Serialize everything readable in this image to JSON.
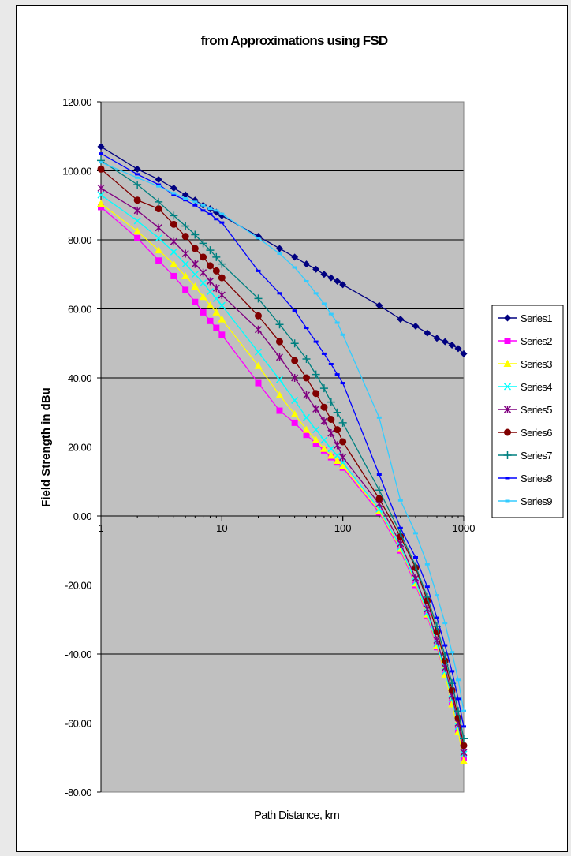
{
  "chart_data": {
    "type": "line",
    "title": "from Approximations using FSD",
    "xlabel": "Path Distance, km",
    "ylabel": "Field Strength in dBu",
    "xscale": "log",
    "xlim": [
      1,
      1000
    ],
    "ylim": [
      -80,
      120
    ],
    "y_ticks": [
      {
        "value": 120,
        "label": "120.00"
      },
      {
        "value": 100,
        "label": "100.00"
      },
      {
        "value": 80,
        "label": "80.00"
      },
      {
        "value": 60,
        "label": "60.00"
      },
      {
        "value": 40,
        "label": "40.00"
      },
      {
        "value": 20,
        "label": "20.00"
      },
      {
        "value": 0,
        "label": "0.00"
      },
      {
        "value": -20,
        "label": "-20.00"
      },
      {
        "value": -40,
        "label": "-40.00"
      },
      {
        "value": -60,
        "label": "-60.00"
      },
      {
        "value": -80,
        "label": "-80.00"
      }
    ],
    "x_ticks": [
      {
        "value": 1,
        "label": "1"
      },
      {
        "value": 10,
        "label": "10"
      },
      {
        "value": 100,
        "label": "100"
      },
      {
        "value": 1000,
        "label": "1000"
      }
    ],
    "grid": "horizontal major gridlines",
    "plot_background": "#c0c0c0",
    "legend_position": "right",
    "x": [
      1,
      2,
      3,
      4,
      5,
      6,
      7,
      8,
      9,
      10,
      20,
      30,
      40,
      50,
      60,
      70,
      80,
      90,
      100,
      200,
      300,
      400,
      500,
      600,
      700,
      800,
      900,
      1000
    ],
    "series": [
      {
        "name": "Series1",
        "color": "#000080",
        "marker": "diamond",
        "values": [
          107,
          100.5,
          97.5,
          95,
          93,
          91.5,
          90,
          89,
          88,
          87,
          81,
          77.5,
          75,
          73,
          71.5,
          70,
          69,
          68,
          67,
          61,
          57,
          55,
          53,
          51.5,
          50.5,
          49.5,
          48.5,
          47
        ]
      },
      {
        "name": "Series2",
        "color": "#ff00ff",
        "marker": "square",
        "values": [
          89.5,
          80.5,
          74,
          69.5,
          65.5,
          62,
          59,
          56.5,
          54.5,
          52.5,
          38.5,
          30.5,
          27,
          23.5,
          21,
          19,
          17,
          15.5,
          14,
          1,
          -10,
          -20,
          -29,
          -38,
          -46,
          -54,
          -62,
          -70
        ]
      },
      {
        "name": "Series3",
        "color": "#ffff00",
        "marker": "triangle",
        "values": [
          90.5,
          82.5,
          77,
          73,
          69.5,
          66.5,
          63.5,
          61,
          59,
          57,
          43.5,
          35,
          29.5,
          25,
          22,
          19.5,
          17.5,
          16,
          14.5,
          1.5,
          -9.5,
          -19.5,
          -28.5,
          -37.5,
          -46,
          -54.5,
          -62.5,
          -71
        ]
      },
      {
        "name": "Series4",
        "color": "#00ffff",
        "marker": "x",
        "values": [
          93,
          85.5,
          80.5,
          76.5,
          73,
          70,
          67.5,
          65,
          63,
          61,
          47.5,
          39.5,
          33.5,
          28.5,
          25,
          22,
          19.5,
          17.5,
          15.5,
          2,
          -9,
          -19,
          -28,
          -37,
          -45,
          -53,
          -61,
          -69
        ]
      },
      {
        "name": "Series5",
        "color": "#800080",
        "marker": "star",
        "values": [
          95,
          88.5,
          83.5,
          79.5,
          76,
          73,
          70.5,
          68,
          66,
          64,
          54,
          46,
          40,
          35,
          31,
          27.5,
          24,
          20.5,
          17,
          3.5,
          -8,
          -18,
          -27,
          -36,
          -44,
          -52,
          -60,
          -68.5
        ]
      },
      {
        "name": "Series6",
        "color": "#800000",
        "marker": "circle",
        "values": [
          100.5,
          91.5,
          89,
          84.5,
          81,
          77.5,
          75,
          72.5,
          71,
          69,
          58,
          50.5,
          45,
          40,
          35.5,
          31.5,
          28,
          25,
          21.5,
          5,
          -6,
          -15,
          -24.5,
          -33.5,
          -42,
          -50.5,
          -58.5,
          -66.5
        ]
      },
      {
        "name": "Series7",
        "color": "#008080",
        "marker": "plus",
        "values": [
          103,
          96,
          91,
          87,
          84,
          81.5,
          79,
          77,
          75,
          73,
          63,
          55.5,
          50,
          45.5,
          41,
          37,
          33,
          30,
          27,
          7.5,
          -5,
          -14.5,
          -23.5,
          -32,
          -40.5,
          -48.5,
          -56.5,
          -64.5
        ]
      },
      {
        "name": "Series8",
        "color": "#0000ff",
        "marker": "dash",
        "values": [
          105,
          99,
          96,
          93,
          91.5,
          90,
          88.5,
          87.5,
          86,
          85,
          71,
          64.5,
          59.5,
          54.5,
          50.5,
          47,
          44,
          41,
          38.5,
          12,
          -3.5,
          -12,
          -20.5,
          -29.5,
          -37.5,
          -45,
          -53,
          -61
        ]
      },
      {
        "name": "Series9",
        "color": "#33ccff",
        "marker": "dash",
        "values": [
          102.5,
          98,
          95.5,
          93.5,
          92,
          91,
          90,
          89,
          88.5,
          87.5,
          80.5,
          76,
          72,
          68,
          64.5,
          61.5,
          58.5,
          56,
          52.5,
          28.5,
          4.5,
          -5,
          -14,
          -23,
          -31,
          -39.5,
          -47.5,
          -56.5
        ]
      }
    ]
  }
}
